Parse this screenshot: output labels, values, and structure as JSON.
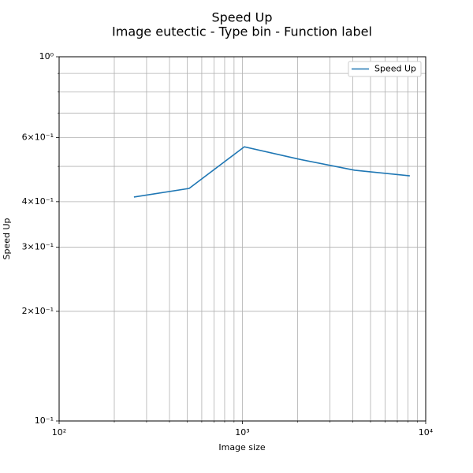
{
  "chart_data": {
    "type": "line",
    "title": "Speed Up",
    "subtitle": "Image eutectic - Type bin - Function label",
    "xlabel": "Image size",
    "ylabel": "Speed Up",
    "x": [
      256,
      512,
      1024,
      2048,
      4096,
      8192
    ],
    "series": [
      {
        "name": "Speed Up",
        "color": "#1f77b4",
        "values": [
          0.412,
          0.435,
          0.566,
          0.523,
          0.488,
          0.471
        ]
      }
    ],
    "xscale": "log",
    "yscale": "log",
    "xlim": [
      100,
      10000
    ],
    "ylim": [
      0.1,
      1
    ],
    "xticks": [
      {
        "value": 100,
        "label": "10²"
      },
      {
        "value": 1000,
        "label": "10³"
      },
      {
        "value": 10000,
        "label": "10⁴"
      }
    ],
    "xminorticks": [
      200,
      300,
      400,
      500,
      600,
      700,
      800,
      900,
      2000,
      3000,
      4000,
      5000,
      6000,
      7000,
      8000,
      9000
    ],
    "yticks": [
      {
        "value": 0.1,
        "label": "10⁻¹"
      },
      {
        "value": 0.2,
        "label": "2×10⁻¹"
      },
      {
        "value": 0.3,
        "label": "3×10⁻¹"
      },
      {
        "value": 0.4,
        "label": "4×10⁻¹"
      },
      {
        "value": 0.6,
        "label": "6×10⁻¹"
      },
      {
        "value": 1,
        "label": "10⁰"
      }
    ],
    "yminorticks": [
      0.5,
      0.7,
      0.8,
      0.9
    ],
    "grid": true,
    "legend": "upper right"
  }
}
